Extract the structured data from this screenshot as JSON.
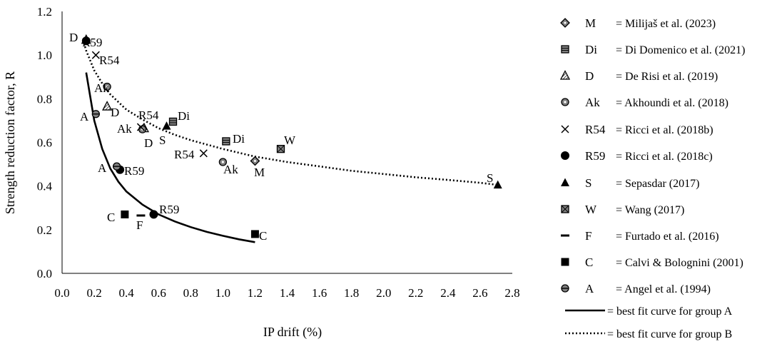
{
  "chart_data": {
    "type": "scatter",
    "xlabel": "IP drift (%)",
    "ylabel": "Strength reduction factor, R",
    "xlim": [
      0.0,
      2.8
    ],
    "ylim": [
      0.0,
      1.2
    ],
    "xticks": [
      "0.0",
      "0.2",
      "0.4",
      "0.6",
      "0.8",
      "1.0",
      "1.2",
      "1.4",
      "1.6",
      "1.8",
      "2.0",
      "2.2",
      "2.4",
      "2.6",
      "2.8"
    ],
    "yticks": [
      "0.0",
      "0.2",
      "0.4",
      "0.6",
      "0.8",
      "1.0",
      "1.2"
    ],
    "grid": false,
    "legend_position": "right",
    "series": [
      {
        "code": "M",
        "legend_text": "= Milijaš et al. (2023)",
        "marker": "diamond-dot",
        "color": "#808080",
        "points": [
          [
            1.2,
            0.515
          ]
        ]
      },
      {
        "code": "Di",
        "legend_text": "= Di Domenico et al. (2021)",
        "marker": "square-lines",
        "color": "#808080",
        "points": [
          [
            0.69,
            0.695
          ],
          [
            1.02,
            0.605
          ]
        ]
      },
      {
        "code": "D",
        "legend_text": "= De Risi et al. (2019)",
        "marker": "triangle-hatch",
        "color": "#808080",
        "points": [
          [
            0.15,
            1.07
          ],
          [
            0.28,
            0.765
          ],
          [
            0.51,
            0.665
          ]
        ]
      },
      {
        "code": "Ak",
        "legend_text": "= Akhoundi et al. (2018)",
        "marker": "circle-dot",
        "color": "#808080",
        "points": [
          [
            0.28,
            0.855
          ],
          [
            0.5,
            0.66
          ],
          [
            1.0,
            0.51
          ]
        ]
      },
      {
        "code": "R54",
        "legend_text": "= Ricci et al. (2018b)",
        "marker": "cross",
        "color": "#000000",
        "points": [
          [
            0.21,
            1.0
          ],
          [
            0.49,
            0.67
          ],
          [
            0.88,
            0.55
          ]
        ]
      },
      {
        "code": "R59",
        "legend_text": "= Ricci et al. (2018c)",
        "marker": "circle",
        "color": "#000000",
        "points": [
          [
            0.15,
            1.065
          ],
          [
            0.36,
            0.475
          ],
          [
            0.57,
            0.27
          ]
        ]
      },
      {
        "code": "S",
        "legend_text": "= Sepasdar (2017)",
        "marker": "triangle",
        "color": "#000000",
        "points": [
          [
            0.65,
            0.675
          ],
          [
            2.71,
            0.405
          ]
        ]
      },
      {
        "code": "W",
        "legend_text": "= Wang (2017)",
        "marker": "square-x",
        "color": "#808080",
        "points": [
          [
            1.36,
            0.57
          ]
        ]
      },
      {
        "code": "F",
        "legend_text": "= Furtado et al. (2016)",
        "marker": "dash",
        "color": "#000000",
        "points": [
          [
            0.49,
            0.265
          ]
        ]
      },
      {
        "code": "C",
        "legend_text": "= Calvi & Bolognini (2001)",
        "marker": "square",
        "color": "#000000",
        "points": [
          [
            0.39,
            0.27
          ],
          [
            1.2,
            0.18
          ]
        ]
      },
      {
        "code": "A",
        "legend_text": "= Angel et al. (1994)",
        "marker": "circle-line",
        "color": "#808080",
        "points": [
          [
            0.21,
            0.73
          ],
          [
            0.34,
            0.49
          ]
        ]
      }
    ],
    "curves": [
      {
        "legend_text": "= best fit curve for group A",
        "style": "solid",
        "points": [
          [
            0.15,
            0.92
          ],
          [
            0.2,
            0.7
          ],
          [
            0.25,
            0.57
          ],
          [
            0.3,
            0.48
          ],
          [
            0.35,
            0.42
          ],
          [
            0.4,
            0.375
          ],
          [
            0.5,
            0.315
          ],
          [
            0.6,
            0.27
          ],
          [
            0.7,
            0.238
          ],
          [
            0.8,
            0.212
          ],
          [
            0.9,
            0.19
          ],
          [
            1.0,
            0.172
          ],
          [
            1.1,
            0.156
          ],
          [
            1.2,
            0.143
          ]
        ]
      },
      {
        "legend_text": "= best fit curve for group B",
        "style": "dotted",
        "points": [
          [
            0.13,
            1.07
          ],
          [
            0.15,
            1.02
          ],
          [
            0.2,
            0.93
          ],
          [
            0.25,
            0.87
          ],
          [
            0.3,
            0.82
          ],
          [
            0.4,
            0.75
          ],
          [
            0.5,
            0.705
          ],
          [
            0.6,
            0.665
          ],
          [
            0.7,
            0.635
          ],
          [
            0.8,
            0.61
          ],
          [
            1.0,
            0.57
          ],
          [
            1.2,
            0.535
          ],
          [
            1.4,
            0.51
          ],
          [
            1.6,
            0.49
          ],
          [
            1.8,
            0.47
          ],
          [
            2.0,
            0.455
          ],
          [
            2.2,
            0.44
          ],
          [
            2.4,
            0.428
          ],
          [
            2.6,
            0.415
          ],
          [
            2.71,
            0.405
          ]
        ]
      }
    ],
    "point_labels": [
      {
        "text": "D"
      },
      {
        "text": "R59"
      },
      {
        "text": "R54"
      },
      {
        "text": "Ak"
      },
      {
        "text": "A"
      },
      {
        "text": "D"
      },
      {
        "text": "R54"
      },
      {
        "text": "Di"
      },
      {
        "text": "Ak"
      },
      {
        "text": "D"
      },
      {
        "text": "S"
      },
      {
        "text": "Di"
      },
      {
        "text": "W"
      },
      {
        "text": "R54"
      },
      {
        "text": "Ak"
      },
      {
        "text": "M"
      },
      {
        "text": "A"
      },
      {
        "text": "R59"
      },
      {
        "text": "S"
      },
      {
        "text": "R59"
      },
      {
        "text": "C"
      },
      {
        "text": "F"
      },
      {
        "text": "C"
      }
    ]
  }
}
